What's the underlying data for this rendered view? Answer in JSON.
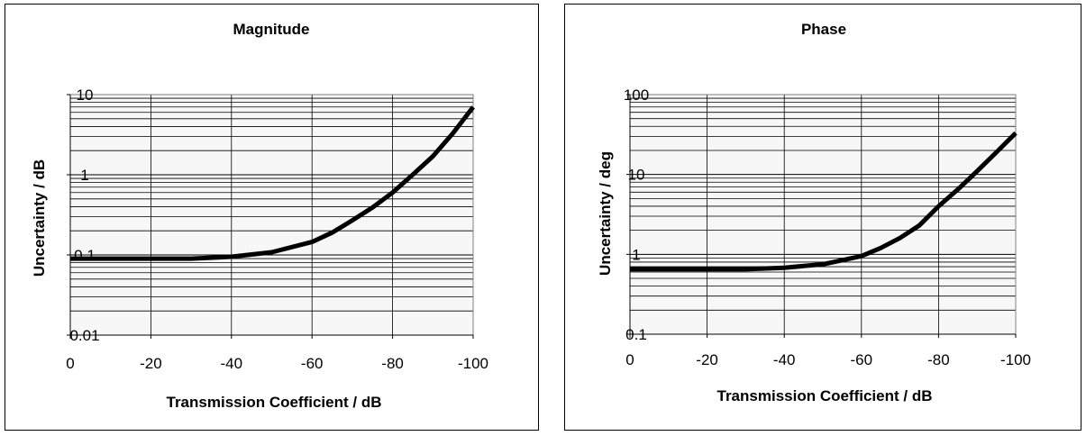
{
  "chart_data": [
    {
      "type": "line",
      "title": "Magnitude",
      "xlabel": "Transmission Coefficient / dB",
      "ylabel": "Uncertainty / dB",
      "xlim": [
        0,
        -100
      ],
      "x_ticks": [
        "0",
        "-20",
        "-40",
        "-60",
        "-80",
        "-100"
      ],
      "ylim": [
        0.01,
        10
      ],
      "y_scale": "log",
      "y_ticks": [
        "10",
        "1",
        "0.1",
        "0.01"
      ],
      "grid": true,
      "series": [
        {
          "x": [
            0,
            -10,
            -20,
            -30,
            -40,
            -50,
            -60,
            -65,
            -70,
            -75,
            -80,
            -85,
            -90,
            -95,
            -100
          ],
          "y": [
            0.09,
            0.09,
            0.09,
            0.09,
            0.095,
            0.108,
            0.145,
            0.19,
            0.27,
            0.39,
            0.6,
            1.0,
            1.7,
            3.3,
            7.0
          ]
        }
      ],
      "colors": {
        "line": "#000000",
        "plot_bg": "#f7f7f7",
        "grid": "#000000"
      }
    },
    {
      "type": "line",
      "title": "Phase",
      "xlabel": "Transmission Coefficient / dB",
      "ylabel": "Uncertainty / deg",
      "xlim": [
        0,
        -100
      ],
      "x_ticks": [
        "0",
        "-20",
        "-40",
        "-60",
        "-80",
        "-100"
      ],
      "ylim": [
        0.1,
        100
      ],
      "y_scale": "log",
      "y_ticks": [
        "100",
        "10",
        "1",
        "0.1"
      ],
      "grid": true,
      "series": [
        {
          "x": [
            0,
            -10,
            -20,
            -30,
            -40,
            -50,
            -60,
            -65,
            -70,
            -75,
            -80,
            -85,
            -90,
            -95,
            -100
          ],
          "y": [
            0.65,
            0.65,
            0.65,
            0.65,
            0.68,
            0.75,
            0.95,
            1.2,
            1.6,
            2.3,
            4.0,
            6.5,
            11,
            19,
            33
          ]
        }
      ],
      "colors": {
        "line": "#000000",
        "plot_bg": "#f7f7f7",
        "grid": "#000000"
      }
    }
  ]
}
